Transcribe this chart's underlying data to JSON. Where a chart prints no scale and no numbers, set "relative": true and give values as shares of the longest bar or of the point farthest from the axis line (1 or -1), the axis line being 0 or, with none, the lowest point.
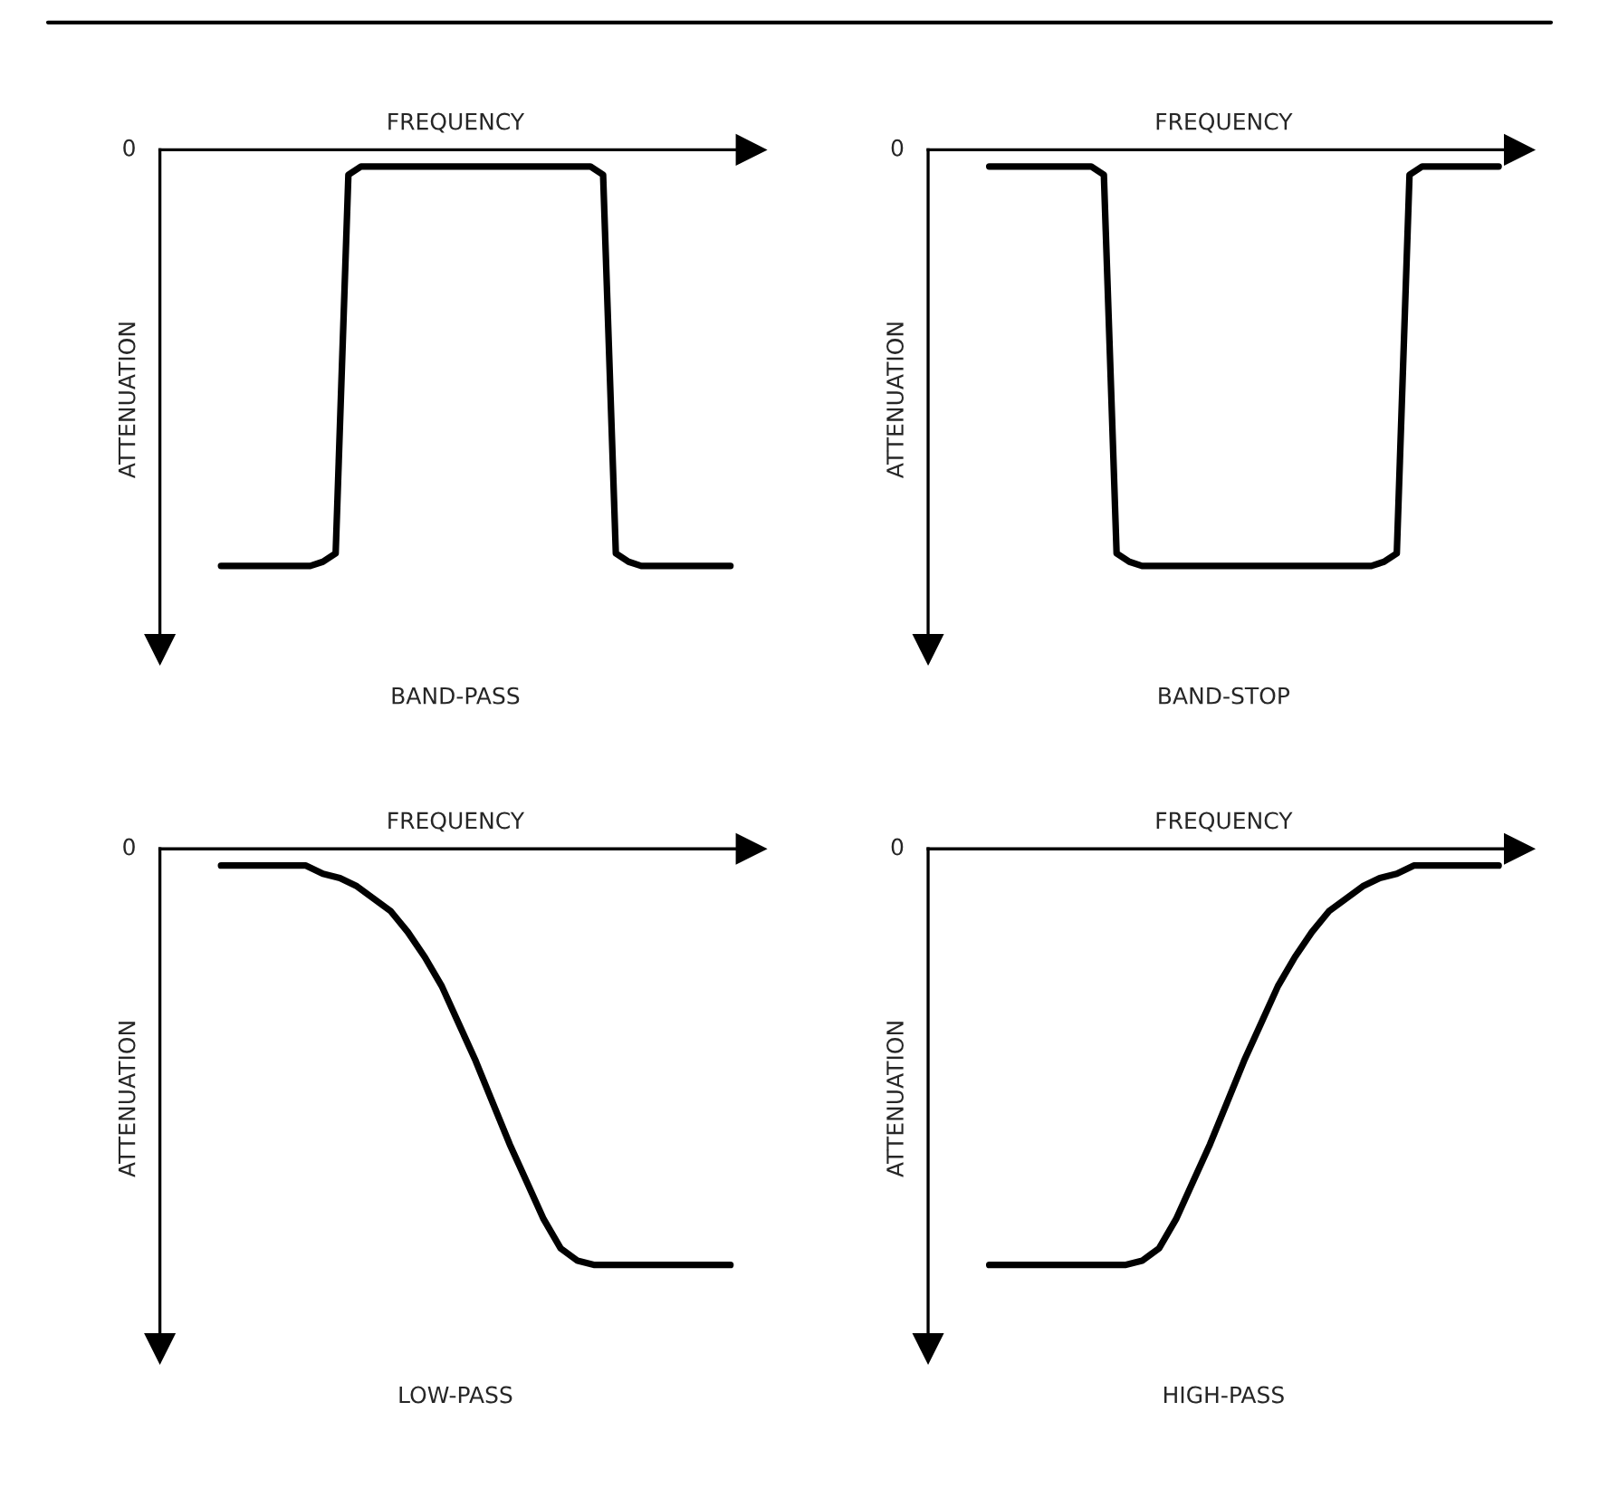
{
  "chart_data": [
    {
      "type": "line",
      "title": "BAND-PASS",
      "xlabel": "FREQUENCY",
      "ylabel": "ATTENUATION",
      "relative": true,
      "tick_labels": false,
      "annotations": [
        "0"
      ],
      "categories": [
        null,
        null,
        null,
        null,
        null,
        null,
        null,
        null,
        null,
        null,
        null,
        null,
        null,
        null,
        null,
        null,
        null,
        null,
        null,
        null,
        null,
        null,
        null,
        null,
        null,
        null,
        null,
        null,
        null,
        null,
        null,
        null,
        null,
        null,
        null,
        null,
        null,
        null,
        null,
        null,
        null
      ],
      "series": [
        {
          "color": "#000000",
          "values": [
            -1,
            -1,
            -1,
            -1,
            -1,
            -1,
            -1,
            -1,
            -0.99,
            -0.97,
            -0.06,
            -0.04,
            -0.04,
            -0.04,
            -0.04,
            -0.04,
            -0.04,
            -0.04,
            -0.04,
            -0.04,
            -0.04,
            -0.04,
            -0.04,
            -0.04,
            -0.04,
            -0.04,
            -0.04,
            -0.04,
            -0.04,
            -0.04,
            -0.06,
            -0.97,
            -0.99,
            -1,
            -1,
            -1,
            -1,
            -1,
            -1,
            -1,
            -1
          ]
        }
      ]
    },
    {
      "type": "line",
      "title": "BAND-STOP",
      "xlabel": "FREQUENCY",
      "ylabel": "ATTENUATION",
      "relative": true,
      "tick_labels": false,
      "annotations": [
        "0"
      ],
      "categories": [
        null,
        null,
        null,
        null,
        null,
        null,
        null,
        null,
        null,
        null,
        null,
        null,
        null,
        null,
        null,
        null,
        null,
        null,
        null,
        null,
        null,
        null,
        null,
        null,
        null,
        null,
        null,
        null,
        null,
        null,
        null,
        null,
        null,
        null,
        null,
        null,
        null,
        null,
        null,
        null,
        null
      ],
      "series": [
        {
          "color": "#000000",
          "values": [
            -0.04,
            -0.04,
            -0.04,
            -0.04,
            -0.04,
            -0.04,
            -0.04,
            -0.04,
            -0.04,
            -0.06,
            -0.97,
            -0.99,
            -1,
            -1,
            -1,
            -1,
            -1,
            -1,
            -1,
            -1,
            -1,
            -1,
            -1,
            -1,
            -1,
            -1,
            -1,
            -1,
            -1,
            -1,
            -1,
            -0.99,
            -0.97,
            -0.06,
            -0.04,
            -0.04,
            -0.04,
            -0.04,
            -0.04,
            -0.04,
            -0.04
          ]
        }
      ]
    },
    {
      "type": "line",
      "title": "LOW-PASS",
      "xlabel": "FREQUENCY",
      "ylabel": "ATTENUATION",
      "relative": true,
      "tick_labels": false,
      "annotations": [
        "0"
      ],
      "categories": [
        null,
        null,
        null,
        null,
        null,
        null,
        null,
        null,
        null,
        null,
        null,
        null,
        null,
        null,
        null,
        null,
        null,
        null,
        null,
        null,
        null,
        null,
        null,
        null,
        null,
        null,
        null,
        null,
        null,
        null,
        null
      ],
      "series": [
        {
          "color": "#000000",
          "values": [
            -0.04,
            -0.04,
            -0.04,
            -0.04,
            -0.04,
            -0.04,
            -0.06,
            -0.07,
            -0.09,
            -0.12,
            -0.15,
            -0.2,
            -0.26,
            -0.33,
            -0.42,
            -0.51,
            -0.61,
            -0.71,
            -0.8,
            -0.89,
            -0.96,
            -0.99,
            -1,
            -1,
            -1,
            -1,
            -1,
            -1,
            -1,
            -1,
            -1
          ]
        }
      ]
    },
    {
      "type": "line",
      "title": "HIGH-PASS",
      "xlabel": "FREQUENCY",
      "ylabel": "ATTENUATION",
      "relative": true,
      "tick_labels": false,
      "annotations": [
        "0"
      ],
      "categories": [
        null,
        null,
        null,
        null,
        null,
        null,
        null,
        null,
        null,
        null,
        null,
        null,
        null,
        null,
        null,
        null,
        null,
        null,
        null,
        null,
        null,
        null,
        null,
        null,
        null,
        null,
        null,
        null,
        null,
        null,
        null
      ],
      "series": [
        {
          "color": "#000000",
          "values": [
            -1,
            -1,
            -1,
            -1,
            -1,
            -1,
            -1,
            -1,
            -1,
            -0.99,
            -0.96,
            -0.89,
            -0.8,
            -0.71,
            -0.61,
            -0.51,
            -0.42,
            -0.33,
            -0.26,
            -0.2,
            -0.15,
            -0.12,
            -0.09,
            -0.07,
            -0.06,
            -0.04,
            -0.04,
            -0.04,
            -0.04,
            -0.04,
            -0.04
          ]
        }
      ]
    }
  ]
}
